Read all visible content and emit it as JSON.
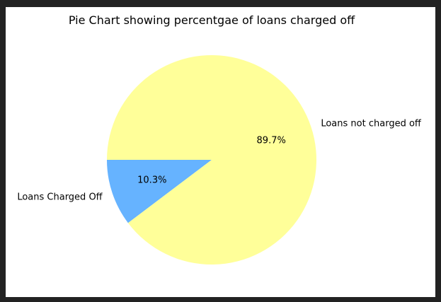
{
  "chart_data": {
    "type": "pie",
    "title": "Pie Chart showing percentgae of loans charged off",
    "slices": [
      {
        "label": "Loans Charged Off",
        "value": 10.3,
        "pct_label": "10.3%",
        "color": "#66b3ff"
      },
      {
        "label": "Loans not charged off",
        "value": 89.7,
        "pct_label": "89.7%",
        "color": "#ffff99"
      }
    ],
    "start_angle_deg": 180,
    "direction": "counterclockwise"
  },
  "colors": {
    "frame": "#222222",
    "canvas": "#ffffff"
  }
}
